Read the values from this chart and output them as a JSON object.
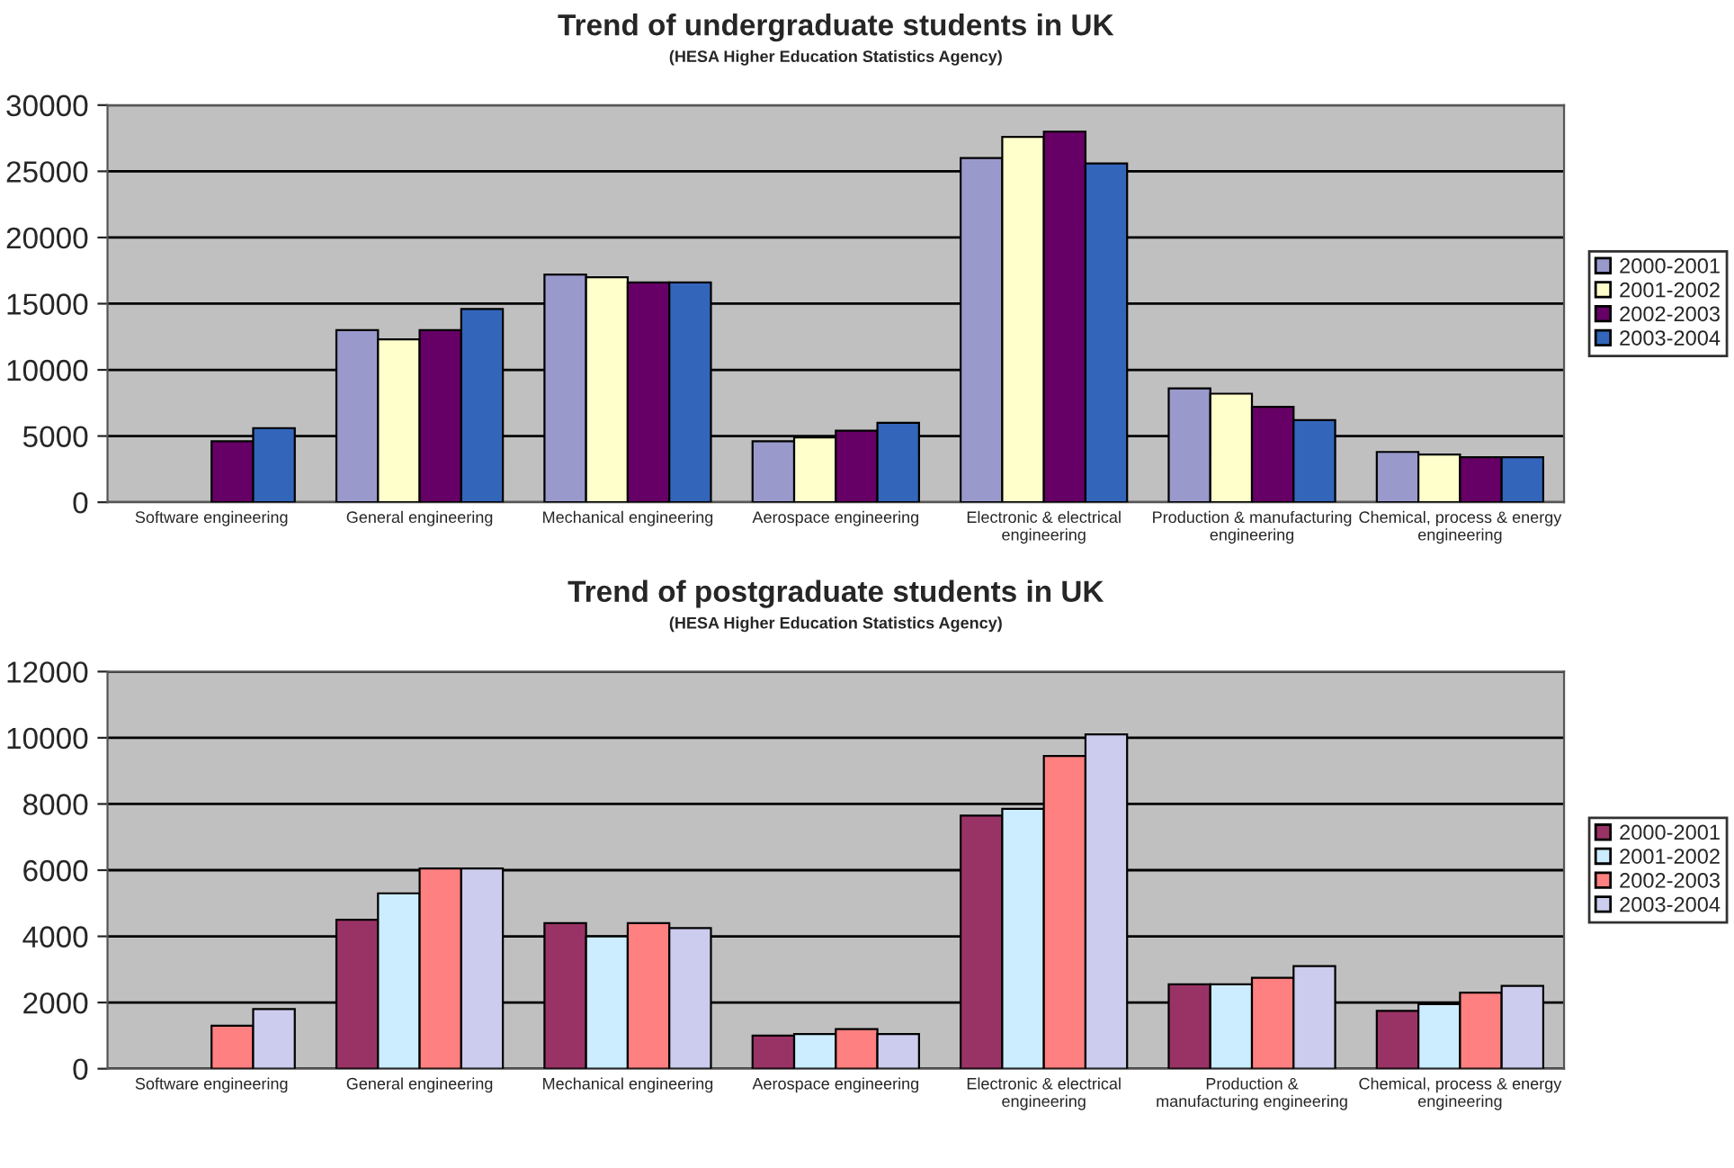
{
  "chart_data": [
    {
      "type": "bar",
      "title": "Trend of undergraduate students in UK",
      "subtitle": "(HESA Higher Education Statistics Agency)",
      "categories": [
        "Software engineering",
        "General engineering",
        "Mechanical engineering",
        "Aerospace engineering",
        "Electronic & electrical\nengineering",
        "Production & manufacturing\nengineering",
        "Chemical, process & energy\nengineering"
      ],
      "series": [
        {
          "name": "2000-2001",
          "color": "#9999cc",
          "values": [
            null,
            13000,
            17200,
            4600,
            26000,
            8600,
            3800
          ]
        },
        {
          "name": "2001-2002",
          "color": "#ffffcc",
          "values": [
            null,
            12300,
            17000,
            4900,
            27600,
            8200,
            3600
          ]
        },
        {
          "name": "2002-2003",
          "color": "#660066",
          "values": [
            4600,
            13000,
            16600,
            5400,
            28000,
            7200,
            3400
          ]
        },
        {
          "name": "2003-2004",
          "color": "#3366bb",
          "values": [
            5600,
            14600,
            16600,
            6000,
            25600,
            6200,
            3400
          ]
        }
      ],
      "ylim": [
        0,
        30000
      ],
      "yticks": [
        0,
        5000,
        10000,
        15000,
        20000,
        25000,
        30000
      ],
      "grid": "y",
      "legend": "right"
    },
    {
      "type": "bar",
      "title": "Trend of postgraduate students in UK",
      "subtitle": "(HESA Higher Education Statistics Agency)",
      "categories": [
        "Software engineering",
        "General engineering",
        "Mechanical engineering",
        "Aerospace engineering",
        "Electronic & electrical\nengineering",
        "Production &\nmanufacturing engineering",
        "Chemical, process & energy\nengineering"
      ],
      "series": [
        {
          "name": "2000-2001",
          "color": "#993366",
          "values": [
            null,
            4500,
            4400,
            1000,
            7650,
            2550,
            1750
          ]
        },
        {
          "name": "2001-2002",
          "color": "#ccecff",
          "values": [
            null,
            5300,
            4000,
            1050,
            7850,
            2550,
            1950
          ]
        },
        {
          "name": "2002-2003",
          "color": "#ff8080",
          "values": [
            1300,
            6050,
            4400,
            1200,
            9450,
            2750,
            2300
          ]
        },
        {
          "name": "2003-2004",
          "color": "#ccccee",
          "values": [
            1800,
            6050,
            4250,
            1050,
            10100,
            3100,
            2500
          ]
        }
      ],
      "ylim": [
        0,
        12000
      ],
      "yticks": [
        0,
        2000,
        4000,
        6000,
        8000,
        10000,
        12000
      ],
      "grid": "y",
      "legend": "right"
    }
  ]
}
